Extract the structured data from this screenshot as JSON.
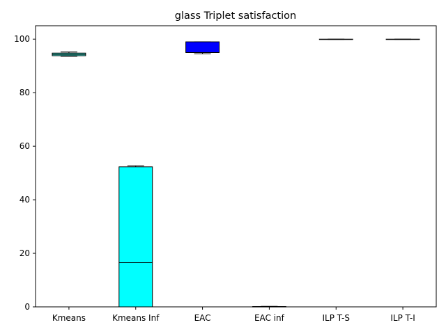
{
  "chart_data": {
    "type": "box",
    "title": "glass Triplet satisfaction",
    "xlabel": "",
    "ylabel": "",
    "ylim": [
      0,
      105
    ],
    "yticks": [
      0,
      20,
      40,
      60,
      80,
      100
    ],
    "grid": false,
    "categories": [
      "Kmeans",
      "Kmeans Inf",
      "EAC",
      "EAC inf",
      "ILP T-S",
      "ILP T-I"
    ],
    "boxes": [
      {
        "label": "Kmeans",
        "whislo": 93.6,
        "q1": 93.8,
        "med": 94.3,
        "q3": 94.8,
        "whishi": 95.2,
        "color": "#40e0d0"
      },
      {
        "label": "Kmeans Inf",
        "whislo": 0.0,
        "q1": 0.0,
        "med": 16.5,
        "q3": 52.3,
        "whishi": 52.7,
        "color": "#00ffff"
      },
      {
        "label": "EAC",
        "whislo": 94.5,
        "q1": 95.0,
        "med": 95.0,
        "q3": 99.0,
        "whishi": 99.0,
        "color": "#0000ff"
      },
      {
        "label": "EAC inf",
        "whislo": 0.0,
        "q1": 0.1,
        "med": 0.1,
        "q3": 0.1,
        "whishi": 0.2,
        "color": "#ffffff"
      },
      {
        "label": "ILP T-S",
        "whislo": 99.9,
        "q1": 99.9,
        "med": 99.9,
        "q3": 100.0,
        "whishi": 100.0,
        "color": "#ffffff"
      },
      {
        "label": "ILP T-I",
        "whislo": 99.9,
        "q1": 99.9,
        "med": 99.9,
        "q3": 100.0,
        "whishi": 100.0,
        "color": "#ffffff"
      }
    ]
  }
}
